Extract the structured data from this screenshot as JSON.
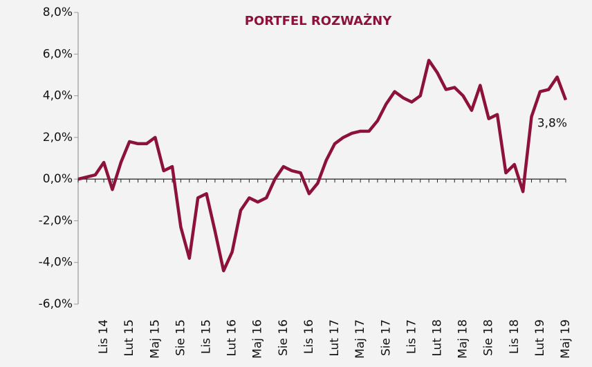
{
  "chart_data": {
    "type": "line",
    "title": "PORTFEL ROZWAŻNY",
    "categories": [
      null,
      null,
      null,
      "Lis 14",
      null,
      null,
      "Lut 15",
      null,
      null,
      "Maj 15",
      null,
      null,
      "Sie 15",
      null,
      null,
      "Lis 15",
      null,
      null,
      "Lut 16",
      null,
      null,
      "Maj 16",
      null,
      null,
      "Sie 16",
      null,
      null,
      "Lis 16",
      null,
      null,
      "Lut 17",
      null,
      null,
      "Maj 17",
      null,
      null,
      "Sie 17",
      null,
      null,
      "Lis 17",
      null,
      null,
      "Lut 18",
      null,
      null,
      "Maj 18",
      null,
      null,
      "Sie 18",
      null,
      null,
      "Lis 18",
      null,
      null,
      "Lut 19",
      null,
      null,
      "Maj 19"
    ],
    "series": [
      {
        "color": "#8c1239",
        "values": [
          0.0,
          0.1,
          0.2,
          0.8,
          -0.5,
          0.8,
          1.8,
          1.7,
          1.7,
          2.0,
          0.4,
          0.6,
          -2.3,
          -3.8,
          -0.9,
          -0.7,
          -2.5,
          -4.4,
          -3.5,
          -1.5,
          -0.9,
          -1.1,
          -0.9,
          0.0,
          0.6,
          0.4,
          0.3,
          -0.7,
          -0.2,
          0.9,
          1.7,
          2.0,
          2.2,
          2.3,
          2.3,
          2.8,
          3.6,
          4.2,
          3.9,
          3.7,
          4.0,
          5.7,
          5.1,
          4.3,
          4.4,
          4.0,
          3.3,
          4.5,
          2.9,
          3.1,
          0.3,
          0.7,
          -0.6,
          3.0,
          4.2,
          4.3,
          4.9,
          3.8
        ],
        "value_labels": [
          null,
          null,
          null,
          null,
          null,
          null,
          null,
          null,
          null,
          null,
          null,
          null,
          null,
          null,
          null,
          null,
          null,
          null,
          null,
          null,
          null,
          null,
          null,
          null,
          null,
          null,
          null,
          null,
          null,
          null,
          null,
          null,
          null,
          null,
          null,
          null,
          null,
          null,
          null,
          null,
          null,
          null,
          null,
          null,
          null,
          null,
          null,
          null,
          null,
          null,
          null,
          null,
          null,
          null,
          null,
          null,
          null,
          "3,8%"
        ]
      }
    ],
    "ylim": [
      -6,
      8
    ],
    "yticks": [
      {
        "value": -6,
        "label": "-6,0%"
      },
      {
        "value": -4,
        "label": "-4,0%"
      },
      {
        "value": -2,
        "label": "-2,0%"
      },
      {
        "value": 0,
        "label": "0,0%"
      },
      {
        "value": 2,
        "label": "2,0%"
      },
      {
        "value": 4,
        "label": "4,0%"
      },
      {
        "value": 6,
        "label": "6,0%"
      },
      {
        "value": 8,
        "label": "8,0%"
      }
    ]
  }
}
